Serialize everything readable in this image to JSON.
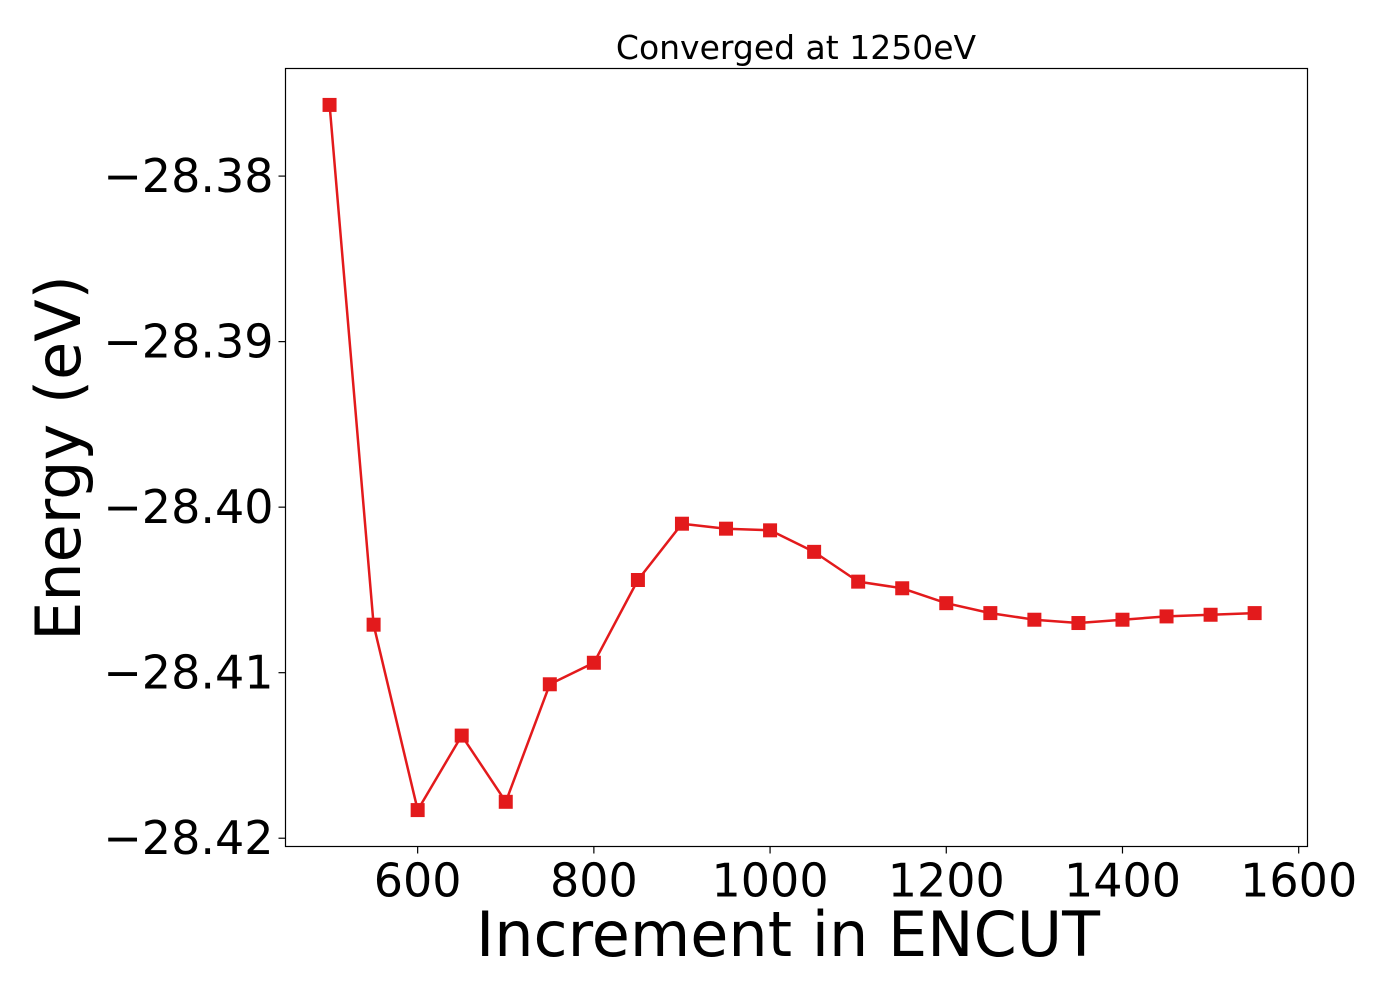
{
  "chart_data": {
    "type": "line",
    "title": "Converged at 1250eV",
    "xlabel": "Increment in ENCUT",
    "ylabel": "Energy (eV)",
    "xlim": [
      450,
      1610
    ],
    "ylim": [
      -28.4205,
      -28.3735
    ],
    "x_ticks": [
      600,
      800,
      1000,
      1200,
      1400,
      1600
    ],
    "x_tick_labels": [
      "600",
      "800",
      "1000",
      "1200",
      "1400",
      "1600"
    ],
    "y_ticks": [
      -28.38,
      -28.39,
      -28.4,
      -28.41,
      -28.42
    ],
    "y_tick_labels": [
      "−28.38",
      "−28.39",
      "−28.40",
      "−28.41",
      "−28.42"
    ],
    "grid": false,
    "series": [
      {
        "color": "#e31a1c",
        "marker": "square",
        "x": [
          500,
          550,
          600,
          650,
          700,
          750,
          800,
          850,
          900,
          950,
          1000,
          1050,
          1100,
          1150,
          1200,
          1250,
          1300,
          1350,
          1400,
          1450,
          1500,
          1550
        ],
        "y": [
          -28.3757,
          -28.4071,
          -28.4183,
          -28.4138,
          -28.4178,
          -28.4107,
          -28.4094,
          -28.4044,
          -28.401,
          -28.4013,
          -28.4014,
          -28.4027,
          -28.4045,
          -28.4049,
          -28.4058,
          -28.4064,
          -28.4068,
          -28.407,
          -28.4068,
          -28.4066,
          -28.4065,
          -28.4064
        ]
      }
    ]
  }
}
